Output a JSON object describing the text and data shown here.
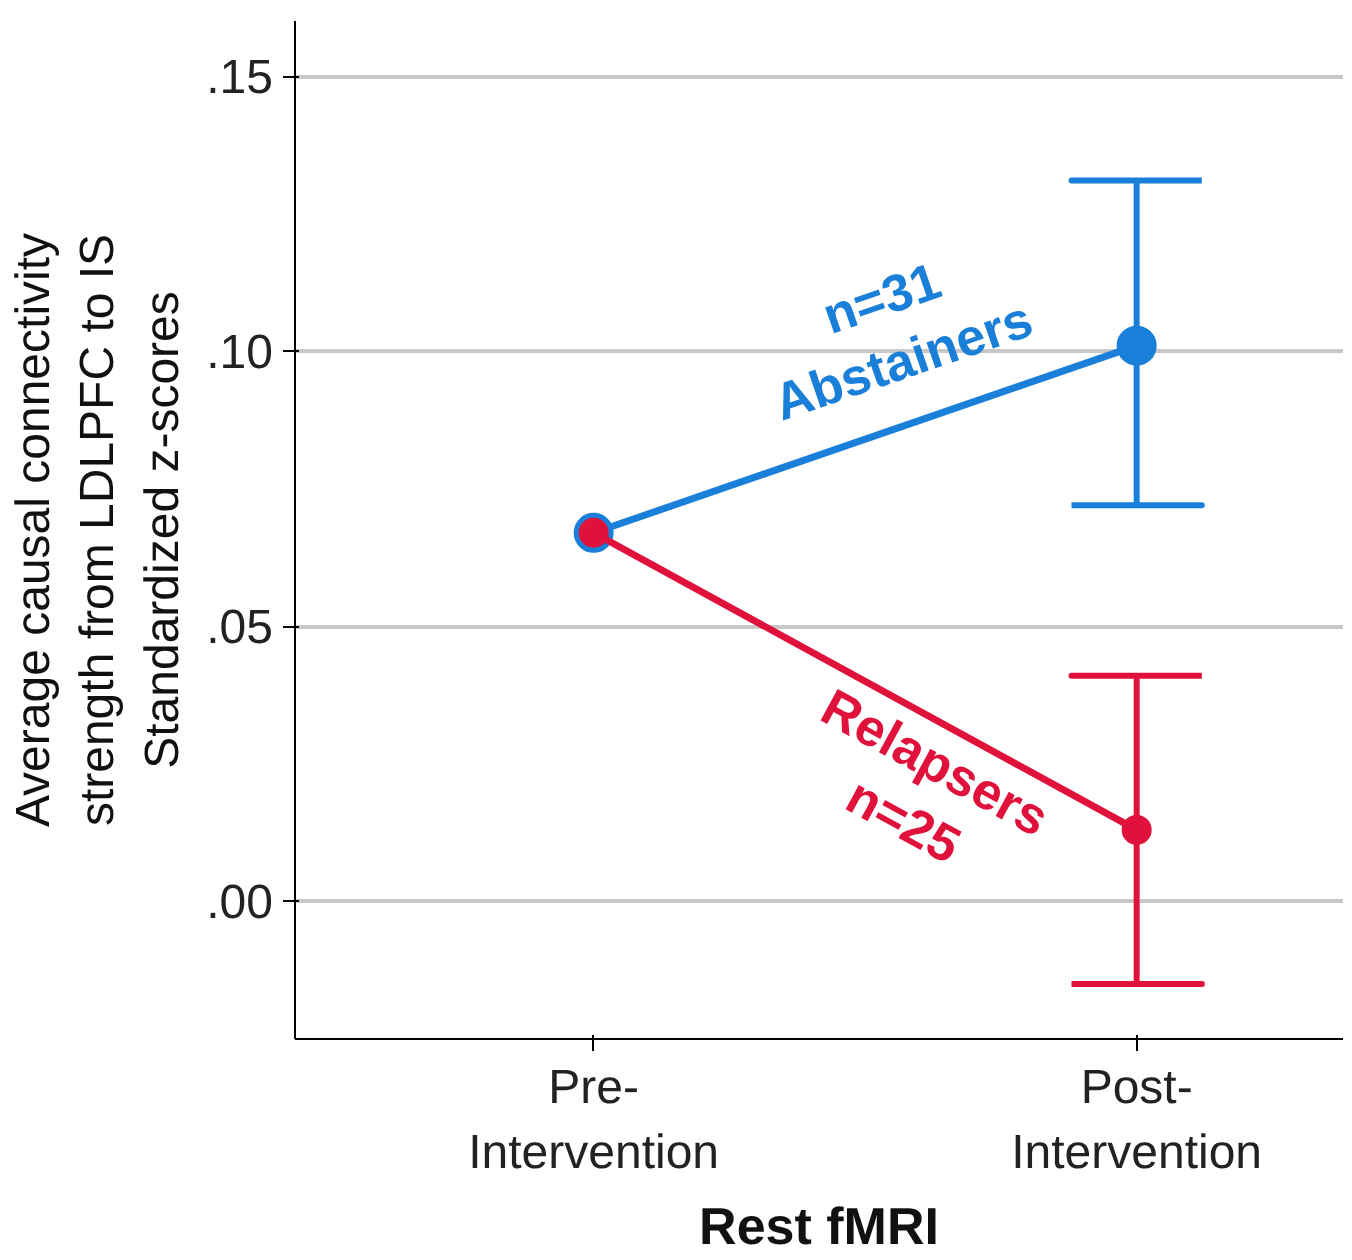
{
  "chart_data": {
    "type": "line",
    "xlabel": "Rest fMRI",
    "ylabel": "Average causal connectivity\nstrength from LDLPFC to IS\nStandardized z-scores",
    "categories": [
      "Pre-\nIntervention",
      "Post-\nIntervention"
    ],
    "series": [
      {
        "name": "n=31\nAbstainers",
        "color": "#1a7fd8",
        "values": [
          0.067,
          0.101
        ],
        "errors": [
          null,
          [
            0.072,
            0.131
          ]
        ]
      },
      {
        "name": "Relapsers\nn=25",
        "color": "#e0123c",
        "values": [
          0.067,
          0.013
        ],
        "errors": [
          null,
          [
            -0.015,
            0.041
          ]
        ]
      }
    ],
    "ylim": [
      -0.025,
      0.16
    ],
    "yticks": [
      {
        "value": 0,
        "label": ".00"
      },
      {
        "value": 0.05,
        "label": ".05"
      },
      {
        "value": 0.1,
        "label": ".10"
      },
      {
        "value": 0.15,
        "label": ".15"
      }
    ],
    "grid": "y",
    "legend": false,
    "marker": "circle",
    "line_style": "solid"
  }
}
